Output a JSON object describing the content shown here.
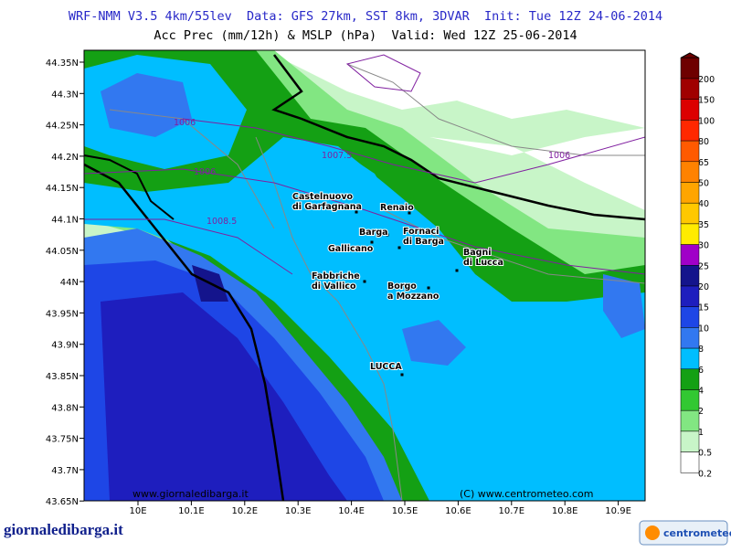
{
  "header": {
    "title": "WRF-NMM V3.5 4km/55lev  Data: GFS 27km, SST 8km, 3DVAR  Init: Tue 12Z 24-06-2014",
    "subtitle": "Acc Prec (mm/12h) & MSLP (hPa)  Valid: Wed 12Z 25-06-2014"
  },
  "map": {
    "lon_ticks": [
      "10E",
      "10.1E",
      "10.2E",
      "10.3E",
      "10.4E",
      "10.5E",
      "10.6E",
      "10.7E",
      "10.8E",
      "10.9E"
    ],
    "lat_ticks": [
      "44.35N",
      "44.3N",
      "44.25N",
      "44.2N",
      "44.15N",
      "44.1N",
      "44.05N",
      "44N",
      "43.95N",
      "43.9N",
      "43.85N",
      "43.8N",
      "43.75N",
      "43.7N",
      "43.65N"
    ],
    "places": [
      {
        "lines": [
          "Castelnuovo",
          "di Garfagnana"
        ]
      },
      {
        "lines": [
          "Renaio"
        ]
      },
      {
        "lines": [
          "Barga"
        ]
      },
      {
        "lines": [
          "Fornaci",
          "di Barga"
        ]
      },
      {
        "lines": [
          "Gallicano"
        ]
      },
      {
        "lines": [
          "Bagni",
          "di Lucca"
        ]
      },
      {
        "lines": [
          "Fabbriche",
          "di Vallico"
        ]
      },
      {
        "lines": [
          "Borgo",
          "a Mozzano"
        ]
      },
      {
        "lines": [
          "LUCCA"
        ]
      }
    ],
    "isobars": [
      "1006",
      "1006",
      "1008.5",
      "1007.5",
      "1006"
    ],
    "credits": [
      "www.giornaledibarga.it",
      "(C) www.centrometeo.com"
    ]
  },
  "legend": {
    "levels": [
      {
        "label": "200",
        "color": "#6e0000"
      },
      {
        "label": "150",
        "color": "#a00000"
      },
      {
        "label": "100",
        "color": "#dc0000"
      },
      {
        "label": "80",
        "color": "#ff2800"
      },
      {
        "label": "65",
        "color": "#ff5a00"
      },
      {
        "label": "50",
        "color": "#ff8200"
      },
      {
        "label": "40",
        "color": "#ffa500"
      },
      {
        "label": "35",
        "color": "#ffc800"
      },
      {
        "label": "30",
        "color": "#ffeb00"
      },
      {
        "label": "25",
        "color": "#a000c8"
      },
      {
        "label": "20",
        "color": "#14148c"
      },
      {
        "label": "15",
        "color": "#1e1ebe"
      },
      {
        "label": "10",
        "color": "#1e46e6"
      },
      {
        "label": "8",
        "color": "#3278f0"
      },
      {
        "label": "6",
        "color": "#00beff"
      },
      {
        "label": "4",
        "color": "#14a014"
      },
      {
        "label": "2",
        "color": "#32c832"
      },
      {
        "label": "1",
        "color": "#82e682"
      },
      {
        "label": "0.5",
        "color": "#c8f5c8"
      },
      {
        "label": "0.2",
        "color": "#ffffff"
      }
    ]
  },
  "footer": {
    "left": "giornaledibarga.it",
    "right": "centrometeo"
  }
}
